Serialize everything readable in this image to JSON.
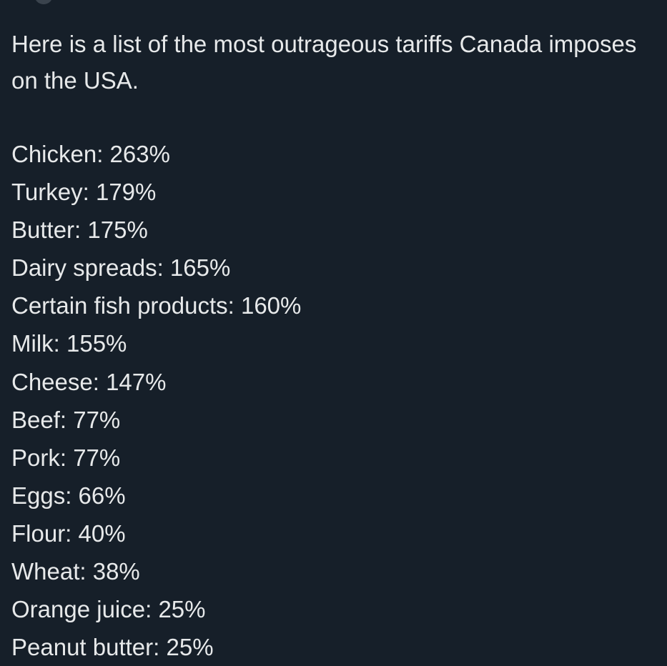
{
  "post": {
    "text": "Here is a list of the most outrageous tariffs Canada imposes on the USA.",
    "items": [
      "Chicken: 263%",
      "Turkey: 179%",
      "Butter: 175%",
      "Dairy spreads: 165%",
      "Certain fish products: 160%",
      "Milk: 155%",
      "Cheese: 147%",
      "Beef: 77%",
      "Pork: 77%",
      "Eggs: 66%",
      "Flour: 40%",
      "Wheat: 38%",
      "Orange juice: 25%",
      "Peanut butter: 25%"
    ]
  }
}
